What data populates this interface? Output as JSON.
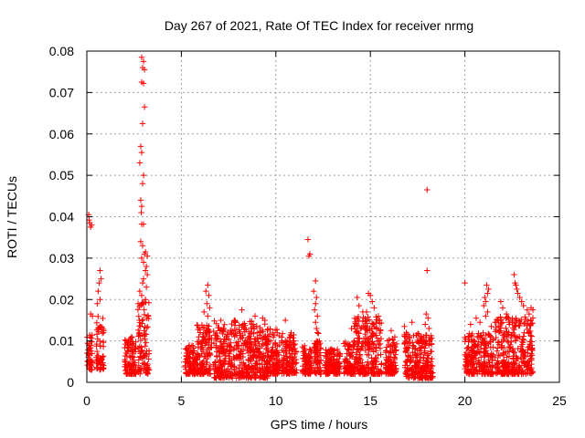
{
  "chart_data": {
    "type": "scatter",
    "title": "Day 267 of 2021, Rate Of TEC Index for receiver nrmg",
    "xlabel": "GPS time / hours",
    "ylabel": "ROTI / TECUs",
    "xlim": [
      0,
      25
    ],
    "ylim": [
      0,
      0.08
    ],
    "xticks": [
      0,
      5,
      10,
      15,
      20,
      25
    ],
    "yticks": [
      0,
      0.01,
      0.02,
      0.03,
      0.04,
      0.05,
      0.06,
      0.07,
      0.08
    ],
    "xtick_labels": [
      "0",
      "5",
      "10",
      "15",
      "20",
      "25"
    ],
    "ytick_labels": [
      "0",
      "0.01",
      "0.02",
      "0.03",
      "0.04",
      "0.05",
      "0.06",
      "0.07",
      "0.08"
    ],
    "grid": true,
    "marker": "+",
    "color": "#ff0000",
    "clusters": [
      {
        "x": [
          0.0,
          0.3
        ],
        "y": [
          0.003,
          0.012
        ]
      },
      {
        "x": [
          0.5,
          0.9
        ],
        "y": [
          0.003,
          0.016
        ]
      },
      {
        "x": [
          2.0,
          2.6
        ],
        "y": [
          0.002,
          0.011
        ]
      },
      {
        "x": [
          2.7,
          3.3
        ],
        "y": [
          0.002,
          0.02
        ]
      },
      {
        "x": [
          5.2,
          5.8
        ],
        "y": [
          0.002,
          0.009
        ]
      },
      {
        "x": [
          5.8,
          6.6
        ],
        "y": [
          0.002,
          0.014
        ]
      },
      {
        "x": [
          6.7,
          9.6
        ],
        "y": [
          0.001,
          0.015
        ]
      },
      {
        "x": [
          9.4,
          10.2
        ],
        "y": [
          0.002,
          0.013
        ]
      },
      {
        "x": [
          10.3,
          11.1
        ],
        "y": [
          0.002,
          0.012
        ]
      },
      {
        "x": [
          11.4,
          11.9
        ],
        "y": [
          0.002,
          0.009
        ]
      },
      {
        "x": [
          12.0,
          12.4
        ],
        "y": [
          0.002,
          0.01
        ]
      },
      {
        "x": [
          12.6,
          13.4
        ],
        "y": [
          0.002,
          0.008
        ]
      },
      {
        "x": [
          13.6,
          14.1
        ],
        "y": [
          0.002,
          0.01
        ]
      },
      {
        "x": [
          14.1,
          15.6
        ],
        "y": [
          0.002,
          0.016
        ]
      },
      {
        "x": [
          15.8,
          16.4
        ],
        "y": [
          0.002,
          0.011
        ]
      },
      {
        "x": [
          16.8,
          18.3
        ],
        "y": [
          0.001,
          0.012
        ]
      },
      {
        "x": [
          20.0,
          21.5
        ],
        "y": [
          0.002,
          0.012
        ]
      },
      {
        "x": [
          21.6,
          23.6
        ],
        "y": [
          0.002,
          0.016
        ]
      }
    ],
    "points": [
      [
        0.1,
        0.0405
      ],
      [
        0.15,
        0.0385
      ],
      [
        0.2,
        0.0375
      ],
      [
        0.25,
        0.038
      ],
      [
        0.12,
        0.0392
      ],
      [
        0.3,
        0.016
      ],
      [
        0.2,
        0.0165
      ],
      [
        0.7,
        0.027
      ],
      [
        0.75,
        0.025
      ],
      [
        0.65,
        0.024
      ],
      [
        0.6,
        0.022
      ],
      [
        0.7,
        0.02
      ],
      [
        0.55,
        0.019
      ],
      [
        2.9,
        0.0785
      ],
      [
        3.0,
        0.0775
      ],
      [
        2.95,
        0.076
      ],
      [
        3.05,
        0.0755
      ],
      [
        2.9,
        0.0725
      ],
      [
        3.0,
        0.0722
      ],
      [
        3.05,
        0.0665
      ],
      [
        2.95,
        0.0625
      ],
      [
        2.85,
        0.057
      ],
      [
        2.9,
        0.0555
      ],
      [
        2.8,
        0.053
      ],
      [
        3.0,
        0.05
      ],
      [
        2.95,
        0.048
      ],
      [
        2.85,
        0.044
      ],
      [
        2.9,
        0.0425
      ],
      [
        2.88,
        0.041
      ],
      [
        2.9,
        0.0382
      ],
      [
        3.0,
        0.0382
      ],
      [
        2.85,
        0.034
      ],
      [
        2.95,
        0.033
      ],
      [
        3.1,
        0.0315
      ],
      [
        3.05,
        0.031
      ],
      [
        3.2,
        0.0305
      ],
      [
        2.9,
        0.03
      ],
      [
        3.0,
        0.029
      ],
      [
        3.15,
        0.028
      ],
      [
        3.1,
        0.027
      ],
      [
        3.2,
        0.026
      ],
      [
        3.0,
        0.025
      ],
      [
        2.95,
        0.024
      ],
      [
        3.15,
        0.023
      ],
      [
        2.8,
        0.022
      ],
      [
        2.9,
        0.021
      ],
      [
        3.1,
        0.02
      ],
      [
        3.0,
        0.019
      ],
      [
        6.4,
        0.0235
      ],
      [
        6.3,
        0.022
      ],
      [
        6.45,
        0.021
      ],
      [
        6.35,
        0.019
      ],
      [
        6.5,
        0.018
      ],
      [
        6.2,
        0.017
      ],
      [
        6.4,
        0.016
      ],
      [
        8.2,
        0.0175
      ],
      [
        8.9,
        0.016
      ],
      [
        9.3,
        0.0155
      ],
      [
        10.5,
        0.015
      ],
      [
        11.7,
        0.0345
      ],
      [
        11.8,
        0.031
      ],
      [
        11.75,
        0.0305
      ],
      [
        12.1,
        0.0245
      ],
      [
        12.0,
        0.022
      ],
      [
        12.15,
        0.0205
      ],
      [
        12.1,
        0.019
      ],
      [
        12.05,
        0.0175
      ],
      [
        12.2,
        0.016
      ],
      [
        12.1,
        0.0145
      ],
      [
        12.15,
        0.013
      ],
      [
        12.2,
        0.012
      ],
      [
        12.25,
        0.0118
      ],
      [
        14.0,
        0.013
      ],
      [
        14.3,
        0.0205
      ],
      [
        14.4,
        0.0185
      ],
      [
        14.6,
        0.017
      ],
      [
        14.9,
        0.0215
      ],
      [
        15.0,
        0.021
      ],
      [
        15.1,
        0.0195
      ],
      [
        15.2,
        0.018
      ],
      [
        14.8,
        0.017
      ],
      [
        16.1,
        0.0125
      ],
      [
        16.8,
        0.0135
      ],
      [
        17.2,
        0.0145
      ],
      [
        18.0,
        0.0465
      ],
      [
        18.0,
        0.027
      ],
      [
        17.95,
        0.0165
      ],
      [
        18.05,
        0.0155
      ],
      [
        17.9,
        0.014
      ],
      [
        18.1,
        0.013
      ],
      [
        20.0,
        0.024
      ],
      [
        20.3,
        0.014
      ],
      [
        20.6,
        0.0155
      ],
      [
        20.8,
        0.0145
      ],
      [
        21.0,
        0.0185
      ],
      [
        21.1,
        0.0195
      ],
      [
        21.15,
        0.0235
      ],
      [
        21.2,
        0.0215
      ],
      [
        21.05,
        0.0205
      ],
      [
        21.25,
        0.0225
      ],
      [
        21.2,
        0.017
      ],
      [
        21.1,
        0.016
      ],
      [
        21.4,
        0.0135
      ],
      [
        21.6,
        0.0145
      ],
      [
        21.9,
        0.0195
      ],
      [
        22.0,
        0.018
      ],
      [
        22.2,
        0.0165
      ],
      [
        22.3,
        0.0155
      ],
      [
        22.5,
        0.015
      ],
      [
        22.6,
        0.026
      ],
      [
        22.7,
        0.0235
      ],
      [
        22.75,
        0.0225
      ],
      [
        22.8,
        0.0215
      ],
      [
        22.9,
        0.0205
      ],
      [
        23.0,
        0.0195
      ],
      [
        22.65,
        0.024
      ],
      [
        23.1,
        0.0185
      ],
      [
        23.3,
        0.0175
      ],
      [
        23.5,
        0.018
      ],
      [
        23.4,
        0.0165
      ],
      [
        23.6,
        0.0175
      ]
    ]
  }
}
